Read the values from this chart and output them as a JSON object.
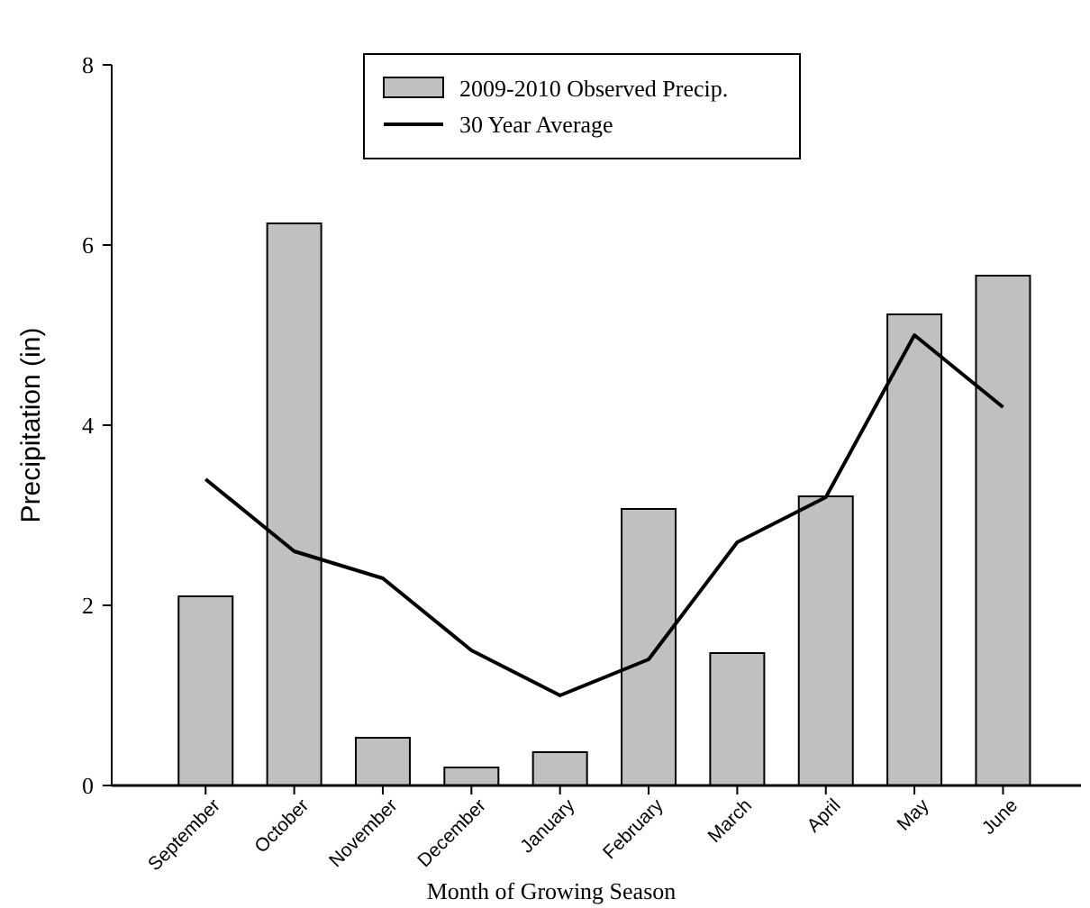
{
  "chart_data": {
    "type": "bar",
    "xlabel": "Month of Growing Season",
    "ylabel": "Precipitation (in)",
    "categories": [
      "September",
      "October",
      "November",
      "December",
      "January",
      "February",
      "March",
      "April",
      "May",
      "June"
    ],
    "series": [
      {
        "name": "2009-2010 Observed Precip.",
        "color": "#c0c0c0",
        "values": [
          2.1,
          6.24,
          0.53,
          0.2,
          0.37,
          3.07,
          1.47,
          3.21,
          5.23,
          5.66
        ]
      },
      {
        "name": "30 Year Average",
        "type": "line",
        "color": "#000000",
        "values": [
          3.4,
          2.6,
          2.3,
          1.5,
          1.0,
          1.4,
          2.7,
          3.2,
          5.0,
          4.2
        ]
      }
    ],
    "ylim": [
      0,
      8
    ],
    "yticks": [
      0,
      2,
      4,
      6,
      8
    ],
    "grid": false,
    "legend": "top",
    "marker": "none",
    "line_style": "solid"
  }
}
